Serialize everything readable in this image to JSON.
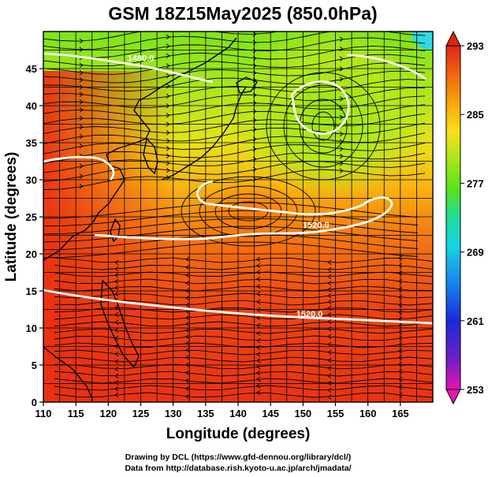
{
  "chart_data": {
    "type": "heatmap",
    "title": "GSM 18Z15May2025 (850.0hPa)",
    "xlabel": "Longitude (degrees)",
    "ylabel": "Latitude  (degrees)",
    "xlim": [
      110,
      170
    ],
    "ylim": [
      0,
      50
    ],
    "x_ticks": [
      110,
      115,
      120,
      125,
      130,
      135,
      140,
      145,
      150,
      155,
      160,
      165
    ],
    "y_ticks": [
      0,
      5,
      10,
      15,
      20,
      25,
      30,
      35,
      40,
      45
    ],
    "variable": "temperature (K) shaded, streamlines of wind, white contours of geopotential height",
    "colorbar": {
      "min": 253,
      "max": 293,
      "tick_values": [
        253,
        261,
        269,
        277,
        285,
        293
      ],
      "tick_labels": [
        "253",
        "261",
        "269",
        "277",
        "285",
        "293"
      ],
      "range_label": "253-293 K",
      "colors": [
        "#e815b0",
        "#6a1fc8",
        "#1a2ad8",
        "#1686ee",
        "#16d6e0",
        "#22dc9a",
        "#56e21e",
        "#a8e818",
        "#f8e018",
        "#f8a80c",
        "#f06410",
        "#e02418"
      ]
    },
    "contours": [
      {
        "label": "1520.0",
        "lon": 151,
        "lat": 11.5
      },
      {
        "label": "1520.0",
        "lon": 152,
        "lat": 23.5
      },
      {
        "label": "1480.0",
        "lon": 125,
        "lat": 46
      }
    ],
    "features": {
      "warm_high": "Subtropical anticyclone centered near 140E 29N",
      "cold_low": "Cyclonic circulation near 152E 41N"
    }
  },
  "credits": {
    "line1": "Drawing by DCL (https://www.gfd-dennou.org/library/dcl/)",
    "line2": "Data from http://database.rish.kyoto-u.ac.jp/arch/jmadata/"
  }
}
